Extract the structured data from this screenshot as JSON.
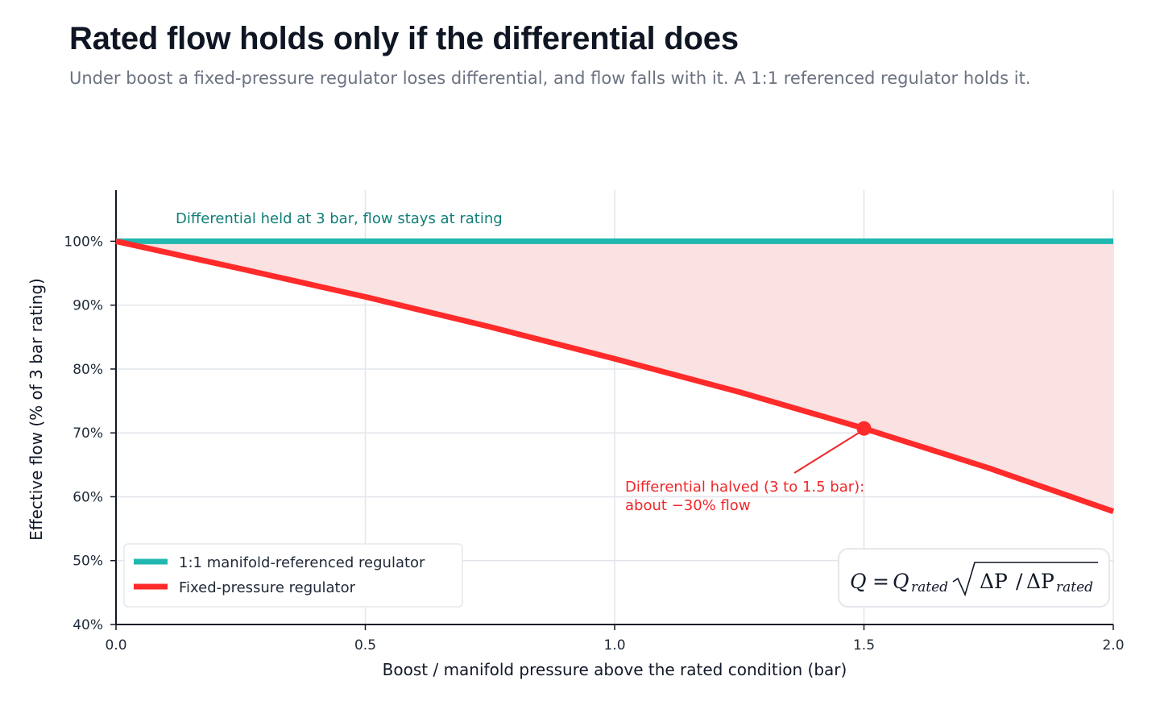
{
  "header": {
    "title": "Rated flow holds only if the differential does",
    "subtitle": "Under boost a fixed-pressure regulator loses differential, and flow falls with it. A 1:1 referenced regulator holds it."
  },
  "chart_data": {
    "type": "line",
    "xlabel": "Boost / manifold pressure above the rated condition (bar)",
    "ylabel": "Effective flow (% of 3 bar rating)",
    "xlim": [
      0,
      2.0
    ],
    "ylim": [
      40,
      108
    ],
    "x_ticks": [
      "0.0",
      "0.5",
      "1.0",
      "1.5",
      "2.0"
    ],
    "y_ticks": [
      "40%",
      "50%",
      "60%",
      "70%",
      "80%",
      "90%",
      "100%"
    ],
    "grid": true,
    "legend_position": "lower-left",
    "series": [
      {
        "name": "1:1 manifold-referenced regulator",
        "color": "#20b8b0",
        "x": [
          0,
          0.5,
          1.0,
          1.5,
          2.0
        ],
        "y": [
          100,
          100,
          100,
          100,
          100
        ]
      },
      {
        "name": "Fixed-pressure regulator",
        "color": "#ff2a2a",
        "x": [
          0,
          0.25,
          0.5,
          0.75,
          1.0,
          1.25,
          1.5,
          1.75,
          2.0
        ],
        "y": [
          100,
          95.7,
          91.3,
          86.6,
          81.6,
          76.4,
          70.7,
          64.5,
          57.7
        ]
      }
    ],
    "shaded_gap_color": "#fae1e2",
    "highlight_point": {
      "x": 1.5,
      "y": 70.7
    },
    "annotations": {
      "teal": "Differential held at 3 bar, flow stays at rating",
      "red_line1": "Differential halved (3 to 1.5 bar):",
      "red_line2": "about −30% flow"
    },
    "formula": {
      "lhs": "Q",
      "eq": "=",
      "q": "Q",
      "q_sub": "rated",
      "num": "ΔP",
      "slash": "/",
      "den": "ΔP",
      "den_sub": "rated"
    }
  }
}
